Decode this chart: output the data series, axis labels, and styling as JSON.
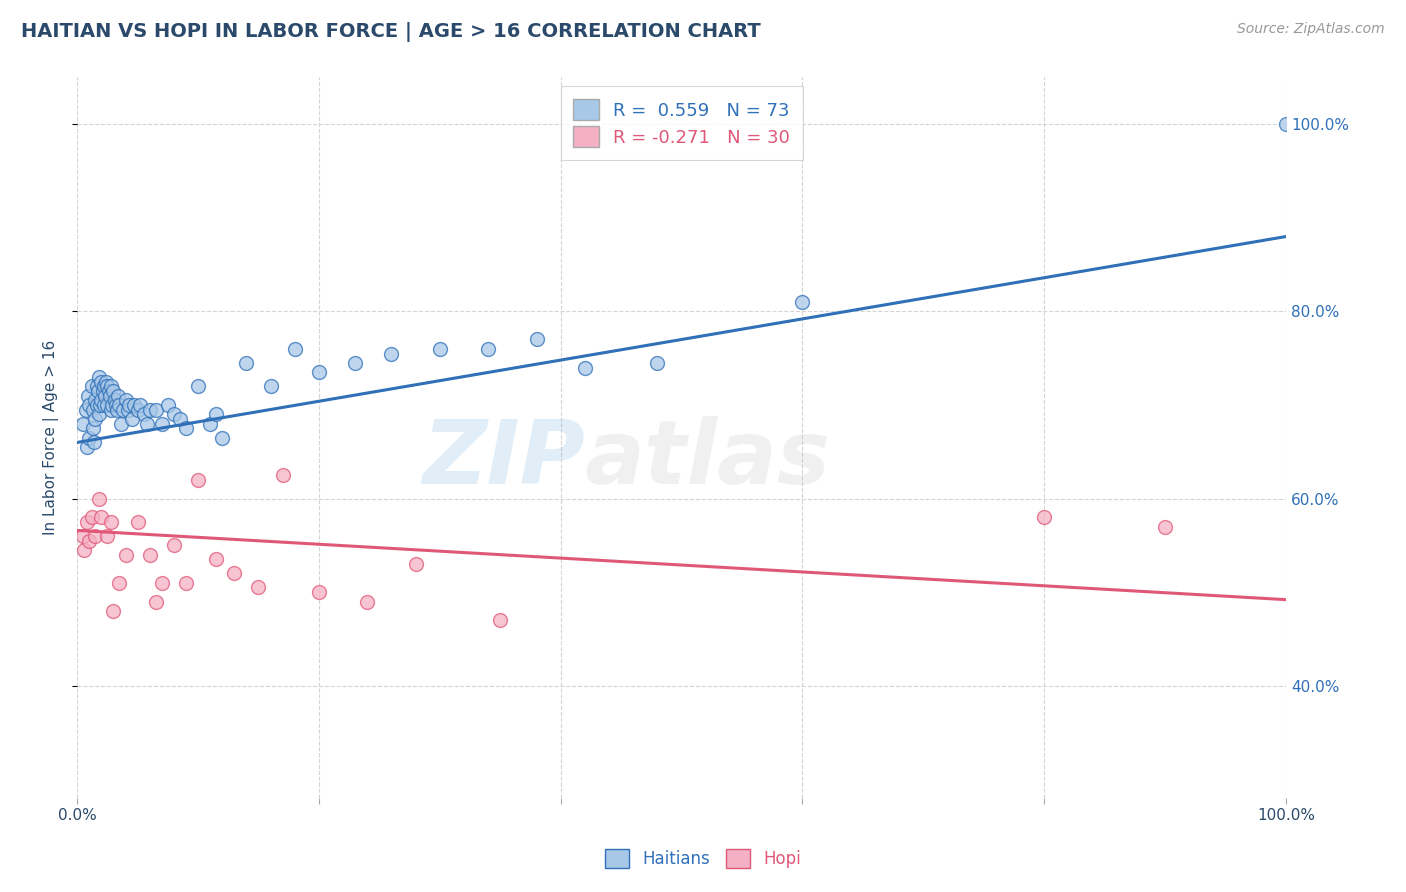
{
  "title": "HAITIAN VS HOPI IN LABOR FORCE | AGE > 16 CORRELATION CHART",
  "ylabel": "In Labor Force | Age > 16",
  "source": "Source: ZipAtlas.com",
  "watermark": "ZIPatlas",
  "xlim": [
    0,
    1.0
  ],
  "ylim": [
    0.28,
    1.05
  ],
  "haitian_color": "#a8c8e8",
  "hopi_color": "#f4b0c4",
  "haitian_line_color": "#3070b8",
  "hopi_line_color": "#e05878",
  "R_haitian": 0.559,
  "N_haitian": 73,
  "R_hopi": -0.271,
  "N_hopi": 30,
  "title_color": "#2b4a6b",
  "haitian_scatter_x": [
    0.005,
    0.007,
    0.008,
    0.009,
    0.01,
    0.01,
    0.012,
    0.013,
    0.013,
    0.014,
    0.015,
    0.015,
    0.016,
    0.016,
    0.017,
    0.018,
    0.018,
    0.019,
    0.02,
    0.02,
    0.021,
    0.022,
    0.022,
    0.023,
    0.024,
    0.025,
    0.025,
    0.026,
    0.027,
    0.028,
    0.028,
    0.029,
    0.03,
    0.031,
    0.032,
    0.033,
    0.034,
    0.035,
    0.036,
    0.038,
    0.04,
    0.042,
    0.043,
    0.045,
    0.047,
    0.05,
    0.052,
    0.055,
    0.058,
    0.06,
    0.065,
    0.07,
    0.075,
    0.08,
    0.085,
    0.09,
    0.1,
    0.11,
    0.115,
    0.12,
    0.14,
    0.16,
    0.18,
    0.2,
    0.23,
    0.26,
    0.3,
    0.34,
    0.38,
    0.42,
    0.48,
    0.6,
    1.0
  ],
  "haitian_scatter_y": [
    0.68,
    0.695,
    0.655,
    0.71,
    0.665,
    0.7,
    0.72,
    0.675,
    0.695,
    0.66,
    0.705,
    0.685,
    0.72,
    0.7,
    0.715,
    0.73,
    0.69,
    0.7,
    0.725,
    0.705,
    0.715,
    0.72,
    0.7,
    0.71,
    0.725,
    0.72,
    0.7,
    0.715,
    0.71,
    0.72,
    0.695,
    0.7,
    0.715,
    0.705,
    0.7,
    0.695,
    0.71,
    0.7,
    0.68,
    0.695,
    0.705,
    0.695,
    0.7,
    0.685,
    0.7,
    0.695,
    0.7,
    0.69,
    0.68,
    0.695,
    0.695,
    0.68,
    0.7,
    0.69,
    0.685,
    0.675,
    0.72,
    0.68,
    0.69,
    0.665,
    0.745,
    0.72,
    0.76,
    0.735,
    0.745,
    0.755,
    0.76,
    0.76,
    0.77,
    0.74,
    0.745,
    0.81,
    1.0
  ],
  "hopi_scatter_x": [
    0.005,
    0.006,
    0.008,
    0.01,
    0.012,
    0.015,
    0.018,
    0.02,
    0.025,
    0.028,
    0.03,
    0.035,
    0.04,
    0.05,
    0.06,
    0.065,
    0.07,
    0.08,
    0.09,
    0.1,
    0.115,
    0.13,
    0.15,
    0.17,
    0.2,
    0.24,
    0.28,
    0.35,
    0.8,
    0.9
  ],
  "hopi_scatter_y": [
    0.56,
    0.545,
    0.575,
    0.555,
    0.58,
    0.56,
    0.6,
    0.58,
    0.56,
    0.575,
    0.48,
    0.51,
    0.54,
    0.575,
    0.54,
    0.49,
    0.51,
    0.55,
    0.51,
    0.62,
    0.535,
    0.52,
    0.505,
    0.625,
    0.5,
    0.49,
    0.53,
    0.47,
    0.58,
    0.57
  ],
  "haitian_trend_x": [
    0.0,
    1.0
  ],
  "haitian_trend_y": [
    0.66,
    0.88
  ],
  "hopi_trend_x": [
    0.0,
    1.0
  ],
  "hopi_trend_y": [
    0.566,
    0.492
  ],
  "bg_color": "#ffffff",
  "grid_color": "#d0d0d0",
  "ytick_positions": [
    0.4,
    0.6,
    0.8,
    1.0
  ],
  "ytick_labels_right": [
    "40.0%",
    "60.0%",
    "80.0%",
    "100.0%"
  ],
  "legend_box_color_haitian": "#a8c8e8",
  "legend_box_color_hopi": "#f4b0c4"
}
